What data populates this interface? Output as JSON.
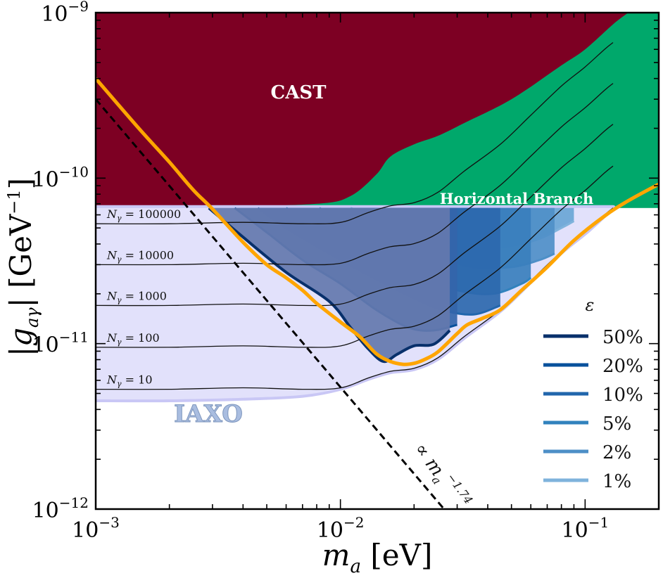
{
  "chart_data": {
    "type": "area",
    "xlabel": "m_a [eV]",
    "ylabel": "|g_aγ| [GeV^-1]",
    "xscale": "log",
    "yscale": "log",
    "xlim": [
      0.001,
      0.2
    ],
    "ylim": [
      1e-12,
      1e-09
    ],
    "x_ticks": [
      {
        "value": 0.001,
        "base": "10",
        "exp": "−3"
      },
      {
        "value": 0.01,
        "base": "10",
        "exp": "−2"
      },
      {
        "value": 0.1,
        "base": "10",
        "exp": "−1"
      }
    ],
    "y_ticks": [
      {
        "value": 1e-12,
        "base": "10",
        "exp": "−12"
      },
      {
        "value": 1e-11,
        "base": "10",
        "exp": "−11"
      },
      {
        "value": 1e-10,
        "base": "10",
        "exp": "−10"
      },
      {
        "value": 1e-09,
        "base": "10",
        "exp": "−9"
      }
    ],
    "regions": {
      "cast": {
        "label": "CAST",
        "color": "#7d0023",
        "boundary": [
          [
            0.001,
            6.6e-11
          ],
          [
            0.003,
            6.7e-11
          ],
          [
            0.008,
            7e-11
          ],
          [
            0.011,
            7.8e-11
          ],
          [
            0.014,
            1.05e-10
          ],
          [
            0.016,
            1.35e-10
          ],
          [
            0.02,
            1.6e-10
          ],
          [
            0.025,
            1.8e-10
          ],
          [
            0.032,
            2.15e-10
          ],
          [
            0.05,
            3e-10
          ],
          [
            0.08,
            4.8e-10
          ],
          [
            0.1,
            6e-10
          ],
          [
            0.13,
            8.5e-10
          ],
          [
            0.15,
            1e-09
          ]
        ]
      },
      "horizontal_branch": {
        "label": "Horizontal Branch",
        "color": "#00a86b",
        "g_limit": 6.6e-11
      },
      "iaxo": {
        "label": "IAXO",
        "color": "#e2e1fb",
        "boundary": [
          [
            0.001,
            4.6e-12
          ],
          [
            0.002,
            4.6e-12
          ],
          [
            0.004,
            4.7e-12
          ],
          [
            0.007,
            4.9e-12
          ],
          [
            0.01,
            5.4e-12
          ],
          [
            0.013,
            6.2e-12
          ],
          [
            0.016,
            6.8e-12
          ],
          [
            0.02,
            7.1e-12
          ],
          [
            0.025,
            8.2e-12
          ],
          [
            0.032,
            1.1e-11
          ],
          [
            0.045,
            1.6e-11
          ],
          [
            0.06,
            2.4e-11
          ],
          [
            0.08,
            3.6e-11
          ],
          [
            0.1,
            4.7e-11
          ],
          [
            0.12,
            6e-11
          ],
          [
            0.13,
            6.6e-11
          ]
        ]
      }
    },
    "n_gamma_lines": [
      {
        "label": "N_γ = 100000",
        "name": "N",
        "sub": "γ",
        "value": "= 100000",
        "g": 5.3e-11
      },
      {
        "label": "N_γ = 10000",
        "name": "N",
        "sub": "γ",
        "value": "= 10000",
        "g": 3e-11
      },
      {
        "label": "N_γ = 1000",
        "name": "N",
        "sub": "γ",
        "value": "= 1000",
        "g": 1.7e-11
      },
      {
        "label": "N_γ = 100",
        "name": "N",
        "sub": "γ",
        "value": "= 100",
        "g": 9.5e-12
      },
      {
        "label": "N_γ = 10",
        "name": "N",
        "sub": "γ",
        "value": "= 10",
        "g": 5.3e-12
      }
    ],
    "series": [
      {
        "name": "50%",
        "color": "#08306b",
        "fill": "#6478ae",
        "values": [
          [
            0.0029,
            6.6e-11
          ],
          [
            0.004,
            4.4e-11
          ],
          [
            0.006,
            2.7e-11
          ],
          [
            0.009,
            1.8e-11
          ],
          [
            0.011,
            1.25e-11
          ],
          [
            0.013,
            9.3e-12
          ],
          [
            0.015,
            7.8e-12
          ],
          [
            0.017,
            8.6e-12
          ],
          [
            0.02,
            9.7e-12
          ],
          [
            0.024,
            9.9e-12
          ],
          [
            0.028,
            1.2e-11
          ]
        ]
      },
      {
        "name": "20%",
        "color": "#08519c",
        "fill": "#3465aa",
        "values": [
          [
            0.0037,
            6.6e-11
          ],
          [
            0.005,
            4.7e-11
          ],
          [
            0.007,
            3.2e-11
          ],
          [
            0.01,
            2.3e-11
          ],
          [
            0.014,
            1.6e-11
          ],
          [
            0.019,
            1.25e-11
          ],
          [
            0.024,
            1.2e-11
          ],
          [
            0.03,
            1.3e-11
          ]
        ]
      },
      {
        "name": "10%",
        "color": "#2166ac",
        "fill": "#2c68ae",
        "values": [
          [
            0.0046,
            6.6e-11
          ],
          [
            0.006,
            5e-11
          ],
          [
            0.009,
            3.5e-11
          ],
          [
            0.013,
            2.6e-11
          ],
          [
            0.019,
            1.95e-11
          ],
          [
            0.026,
            1.6e-11
          ],
          [
            0.035,
            1.5e-11
          ],
          [
            0.045,
            1.7e-11
          ]
        ]
      },
      {
        "name": "5%",
        "color": "#3182bd",
        "fill": "#3a7fbd",
        "values": [
          [
            0.006,
            6.6e-11
          ],
          [
            0.009,
            4.8e-11
          ],
          [
            0.013,
            3.5e-11
          ],
          [
            0.02,
            2.6e-11
          ],
          [
            0.03,
            2.1e-11
          ],
          [
            0.042,
            2e-11
          ],
          [
            0.055,
            2.3e-11
          ],
          [
            0.06,
            2.5e-11
          ]
        ]
      },
      {
        "name": "2%",
        "color": "#4d8fc7",
        "fill": "#4f8fc8",
        "values": [
          [
            0.0082,
            6.6e-11
          ],
          [
            0.011,
            5.3e-11
          ],
          [
            0.016,
            4.2e-11
          ],
          [
            0.024,
            3.4e-11
          ],
          [
            0.035,
            2.9e-11
          ],
          [
            0.05,
            2.9e-11
          ],
          [
            0.065,
            3.2e-11
          ],
          [
            0.075,
            3.5e-11
          ]
        ]
      },
      {
        "name": "1%",
        "color": "#7fb3dc",
        "fill": "#6aa6d6",
        "values": [
          [
            0.011,
            6.6e-11
          ],
          [
            0.016,
            5.4e-11
          ],
          [
            0.024,
            4.4e-11
          ],
          [
            0.035,
            3.85e-11
          ],
          [
            0.05,
            3.9e-11
          ],
          [
            0.065,
            4.3e-11
          ],
          [
            0.08,
            5e-11
          ],
          [
            0.09,
            5.5e-11
          ]
        ]
      }
    ],
    "orange_curve": {
      "color": "#ffa500",
      "values": [
        [
          0.001,
          4e-10
        ],
        [
          0.0015,
          2e-10
        ],
        [
          0.002,
          1.25e-10
        ],
        [
          0.0025,
          8.5e-11
        ],
        [
          0.003,
          6.5e-11
        ],
        [
          0.004,
          4.1e-11
        ],
        [
          0.005,
          3e-11
        ],
        [
          0.006,
          2.5e-11
        ],
        [
          0.007,
          2.1e-11
        ],
        [
          0.008,
          1.75e-11
        ],
        [
          0.01,
          1.35e-11
        ],
        [
          0.012,
          1.1e-11
        ],
        [
          0.014,
          8.7e-12
        ],
        [
          0.016,
          7.8e-12
        ],
        [
          0.018,
          7.5e-12
        ],
        [
          0.02,
          7.6e-12
        ],
        [
          0.022,
          8e-12
        ],
        [
          0.025,
          8.9e-12
        ],
        [
          0.03,
          1.15e-11
        ],
        [
          0.033,
          1.3e-11
        ],
        [
          0.038,
          1.42e-11
        ],
        [
          0.045,
          1.6e-11
        ],
        [
          0.055,
          2.1e-11
        ],
        [
          0.07,
          2.9e-11
        ],
        [
          0.09,
          4.2e-11
        ],
        [
          0.12,
          5.9e-11
        ],
        [
          0.15,
          7.3e-11
        ],
        [
          0.2,
          9.2e-11
        ]
      ]
    },
    "dashed_line": {
      "label": "∝ m_a^−1.74",
      "base": "∝ m",
      "sub": "a",
      "exp": "−1.74",
      "slope": -1.74,
      "anchor": [
        0.001,
        3e-10
      ]
    },
    "legend": {
      "title": "ε",
      "position": "lower-right",
      "entries": [
        "50%",
        "20%",
        "10%",
        "5%",
        "2%",
        "1%"
      ]
    }
  }
}
